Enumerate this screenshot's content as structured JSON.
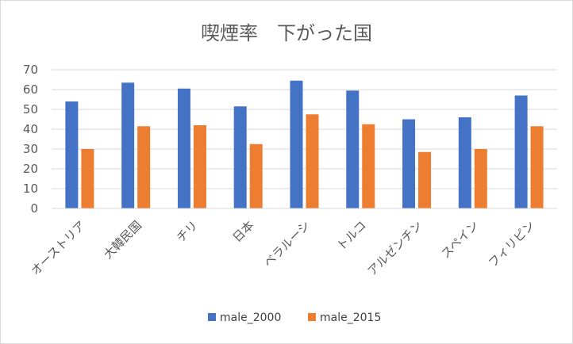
{
  "chart_data": {
    "type": "bar",
    "title": "喫煙率　下がった国",
    "categories": [
      "オーストリア",
      "大韓民国",
      "チリ",
      "日本",
      "ベラルーシ",
      "トルコ",
      "アルゼンチン",
      "スペイン",
      "フィリピン"
    ],
    "series": [
      {
        "name": "male_2000",
        "color": "#4472c4",
        "values": [
          54,
          63.5,
          60.5,
          51.5,
          64.5,
          59.5,
          45,
          46,
          57
        ]
      },
      {
        "name": "male_2015",
        "color": "#ed7d31",
        "values": [
          30,
          41.5,
          42,
          32.5,
          47.5,
          42.5,
          28.5,
          30,
          41.5
        ]
      }
    ],
    "yticks": [
      0,
      10,
      20,
      30,
      40,
      50,
      60,
      70
    ],
    "ylim": [
      0,
      70
    ],
    "grid": true,
    "legend": "bottom",
    "xlabel": "",
    "ylabel": ""
  }
}
